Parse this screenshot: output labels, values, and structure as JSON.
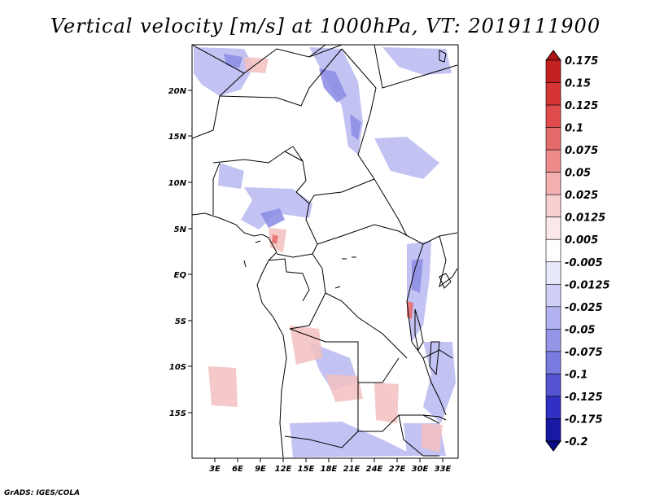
{
  "title": "Vertical velocity [m/s] at 1000hPa, VT: 2019111900",
  "credit": "GrADS: IGES/COLA",
  "map": {
    "lat_labels": [
      "20N",
      "15N",
      "10N",
      "5N",
      "EQ",
      "5S",
      "10S",
      "15S"
    ],
    "lon_labels": [
      "3E",
      "6E",
      "9E",
      "12E",
      "15E",
      "18E",
      "21E",
      "24E",
      "27E",
      "30E",
      "33E"
    ]
  },
  "colorbar": {
    "levels": [
      "0.175",
      "0.15",
      "0.125",
      "0.1",
      "0.075",
      "0.05",
      "0.025",
      "0.0125",
      "0.005",
      "-0.005",
      "-0.0125",
      "-0.025",
      "-0.05",
      "-0.075",
      "-0.1",
      "-0.125",
      "-0.175",
      "-0.2"
    ],
    "colors": [
      "#b01313",
      "#c42121",
      "#d63535",
      "#e04c4c",
      "#e66c6c",
      "#ee8c8c",
      "#f4b0b0",
      "#f8d0d0",
      "#fbe8e8",
      "#ffffff",
      "#e8e8fb",
      "#cfcff7",
      "#b2b2f0",
      "#9696e8",
      "#7a7ae0",
      "#5454d4",
      "#3030c4",
      "#1818a4",
      "#0a0a88"
    ]
  }
}
